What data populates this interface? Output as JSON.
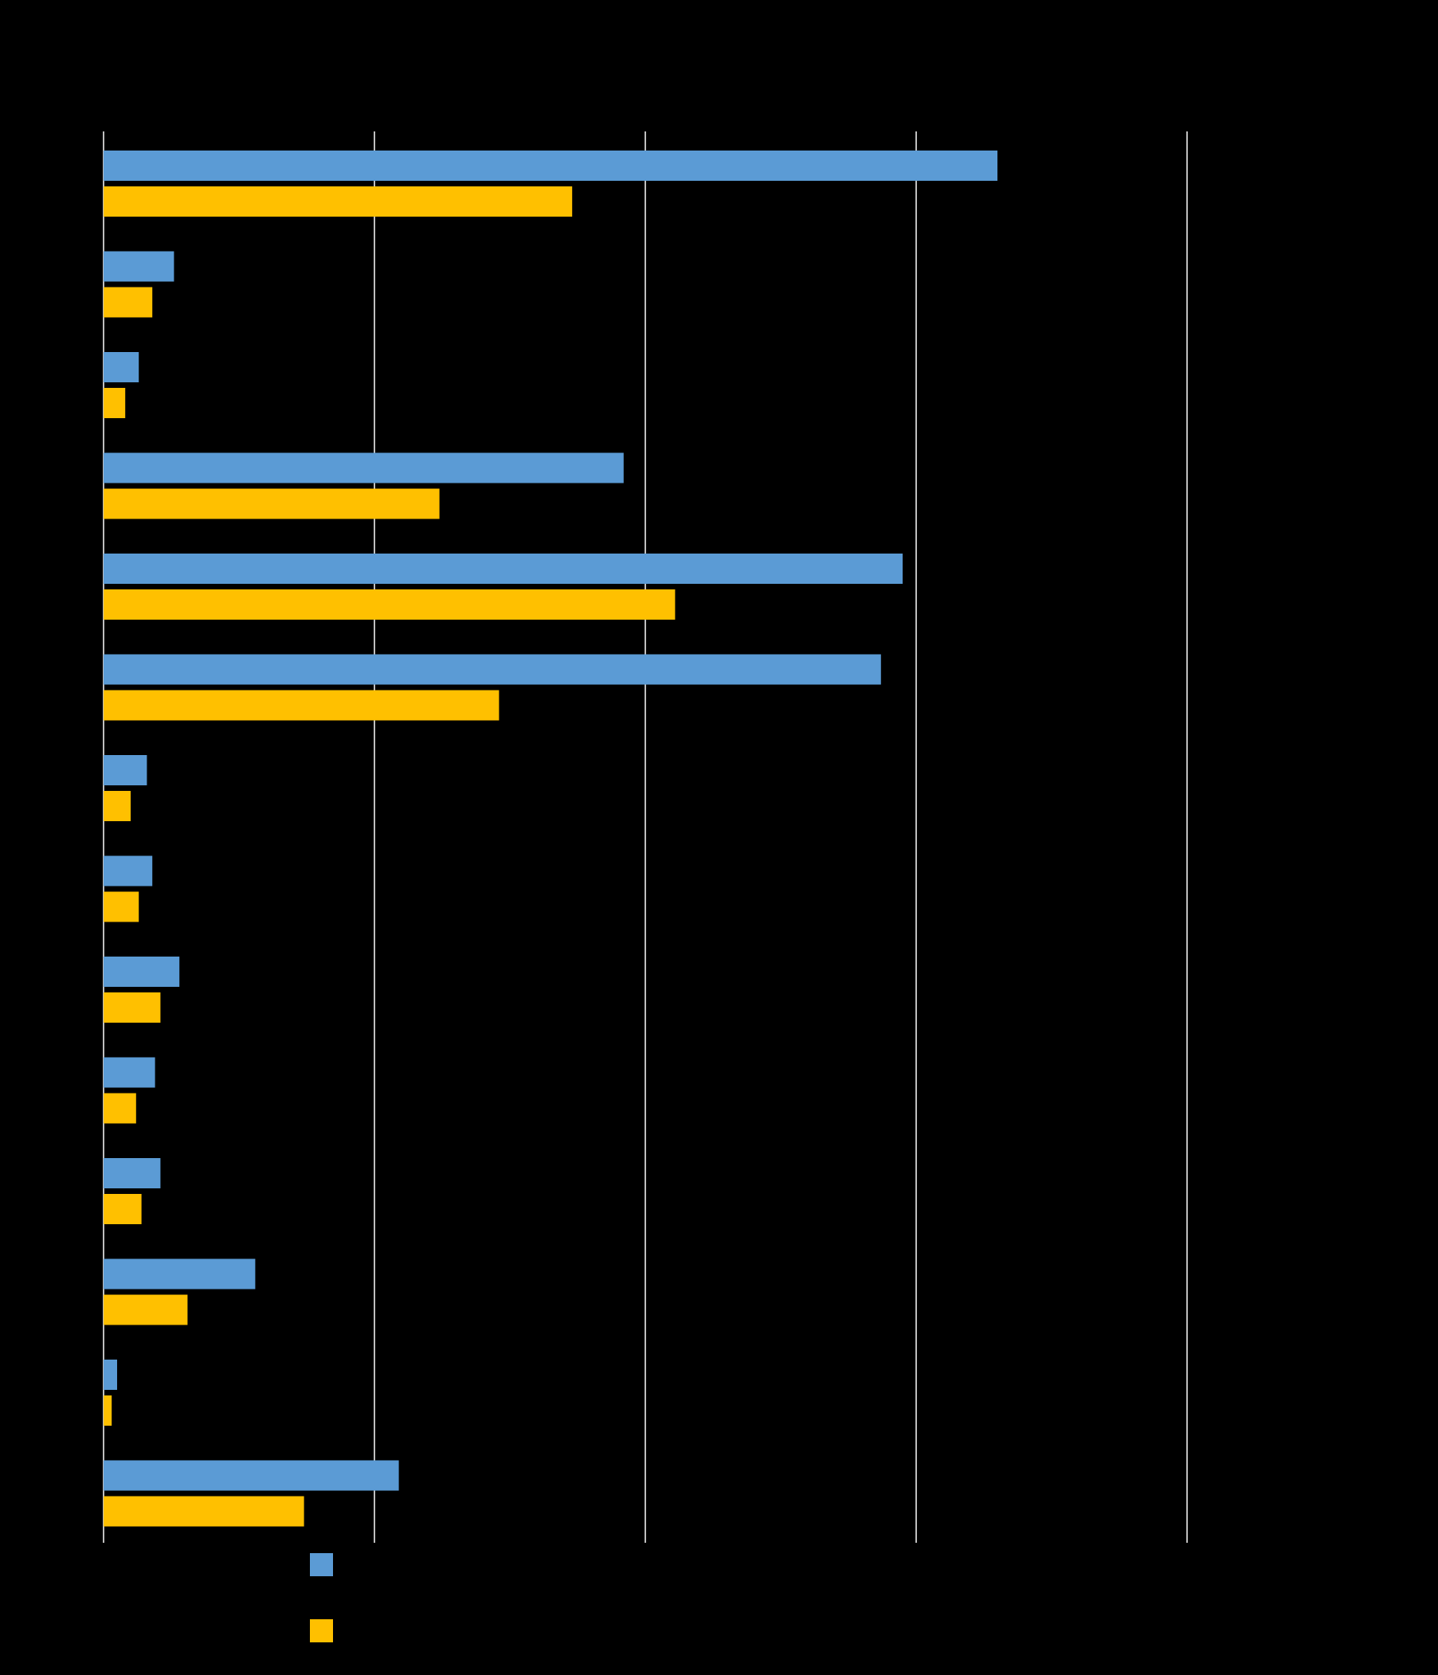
{
  "chart_data": {
    "type": "bar",
    "orientation": "horizontal",
    "title": "",
    "xlabel": "",
    "ylabel": "",
    "xlim": [
      0,
      4
    ],
    "grid": true,
    "legend_position": "bottom-left",
    "categories": [
      "",
      "",
      "",
      "",
      "",
      "",
      "",
      "",
      "",
      "",
      "",
      "",
      "",
      ""
    ],
    "series": [
      {
        "color": "#5b9bd5",
        "values": [
          3.3,
          0.26,
          0.13,
          1.92,
          2.95,
          2.87,
          0.16,
          0.18,
          0.28,
          0.19,
          0.21,
          0.56,
          0.05,
          1.09
        ]
      },
      {
        "color": "#ffc000",
        "values": [
          1.73,
          0.18,
          0.08,
          1.24,
          2.11,
          1.46,
          0.1,
          0.13,
          0.21,
          0.12,
          0.14,
          0.31,
          0.03,
          0.74
        ]
      }
    ]
  }
}
